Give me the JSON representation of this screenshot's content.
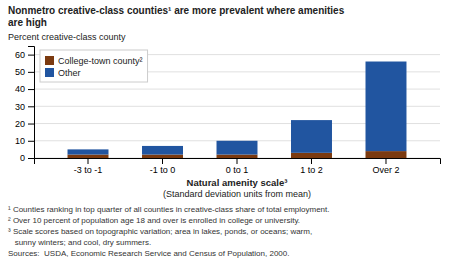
{
  "chart_data": {
    "type": "bar",
    "stacked": true,
    "title": "Nonmetro creative-class counties¹ are more prevalent where amenities\nare high",
    "ylabel": "Percent creative-class county",
    "xlabel": [
      "Natural amenity scale³",
      "(Standard deviation units from mean)"
    ],
    "categories": [
      "-3 to -1",
      "-1 to 0",
      "0 to 1",
      "1 to 2",
      "Over 2"
    ],
    "series": [
      {
        "name": "College-town county²",
        "color": "#7B3A10",
        "values": [
          2,
          2,
          2,
          3,
          4
        ]
      },
      {
        "name": "Other",
        "color": "#2155A0",
        "values": [
          3,
          5,
          8,
          19,
          52
        ]
      }
    ],
    "ylim": [
      0,
      65
    ],
    "yticks": [
      0,
      10,
      20,
      30,
      40,
      50,
      60
    ],
    "grid": true,
    "legend": "upper left",
    "annotations": [
      "¹ Counties ranking in top quarter of all counties in creative-class share of total employment.",
      "² Over 10 percent of population age 18 and over is enrolled in college or university.",
      "³ Scale scores based on topographic variation; area in lakes, ponds, or oceans; warm,",
      "   sunny winters; and cool, dry summers.",
      "Sources:  USDA, Economic Research Service and Census of Population, 2000."
    ]
  }
}
